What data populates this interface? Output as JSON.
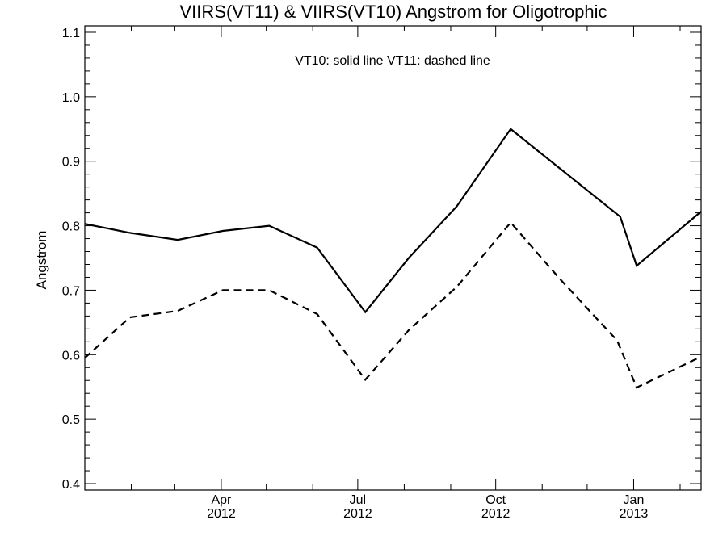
{
  "chart_data": {
    "type": "line",
    "title": "VIIRS(VT11) & VIIRS(VT10)  Angstrom for Oligotrophic",
    "subtitle": "VT10: solid line   VT11: dashed line",
    "xlabel": "",
    "ylabel": "Angstrom",
    "ylim": [
      0.39,
      1.11
    ],
    "xlim": [
      "2012-01-01",
      "2013-02-15"
    ],
    "grid": false,
    "y_ticks": [
      "0.4",
      "0.5",
      "0.6",
      "0.7",
      "0.8",
      "0.9",
      "1.0",
      "1.1"
    ],
    "x_ticks": [
      {
        "date": "2012-04-01",
        "month": "Apr",
        "year": "2012"
      },
      {
        "date": "2012-07-01",
        "month": "Jul",
        "year": "2012"
      },
      {
        "date": "2012-10-01",
        "month": "Oct",
        "year": "2012"
      },
      {
        "date": "2013-01-01",
        "month": "Jan",
        "year": "2013"
      }
    ],
    "series": [
      {
        "name": "VT10",
        "style": "solid",
        "color": "#000000",
        "points": [
          {
            "x": "2012-01-01",
            "y": 0.803
          },
          {
            "x": "2012-01-31",
            "y": 0.789
          },
          {
            "x": "2012-03-03",
            "y": 0.778
          },
          {
            "x": "2012-04-02",
            "y": 0.792
          },
          {
            "x": "2012-05-03",
            "y": 0.8
          },
          {
            "x": "2012-06-04",
            "y": 0.766
          },
          {
            "x": "2012-07-06",
            "y": 0.666
          },
          {
            "x": "2012-08-04",
            "y": 0.75
          },
          {
            "x": "2012-09-05",
            "y": 0.83
          },
          {
            "x": "2012-10-11",
            "y": 0.95
          },
          {
            "x": "2012-12-23",
            "y": 0.814
          },
          {
            "x": "2013-01-03",
            "y": 0.738
          },
          {
            "x": "2013-02-15",
            "y": 0.822
          }
        ]
      },
      {
        "name": "VT11",
        "style": "dashed",
        "color": "#000000",
        "points": [
          {
            "x": "2012-01-01",
            "y": 0.595
          },
          {
            "x": "2012-01-31",
            "y": 0.658
          },
          {
            "x": "2012-03-03",
            "y": 0.668
          },
          {
            "x": "2012-04-02",
            "y": 0.7
          },
          {
            "x": "2012-05-03",
            "y": 0.7
          },
          {
            "x": "2012-06-04",
            "y": 0.663
          },
          {
            "x": "2012-07-06",
            "y": 0.561
          },
          {
            "x": "2012-08-04",
            "y": 0.638
          },
          {
            "x": "2012-09-05",
            "y": 0.705
          },
          {
            "x": "2012-10-11",
            "y": 0.805
          },
          {
            "x": "2012-11-13",
            "y": 0.717
          },
          {
            "x": "2012-12-21",
            "y": 0.622
          },
          {
            "x": "2013-01-03",
            "y": 0.549
          },
          {
            "x": "2013-02-15",
            "y": 0.597
          }
        ]
      }
    ]
  }
}
